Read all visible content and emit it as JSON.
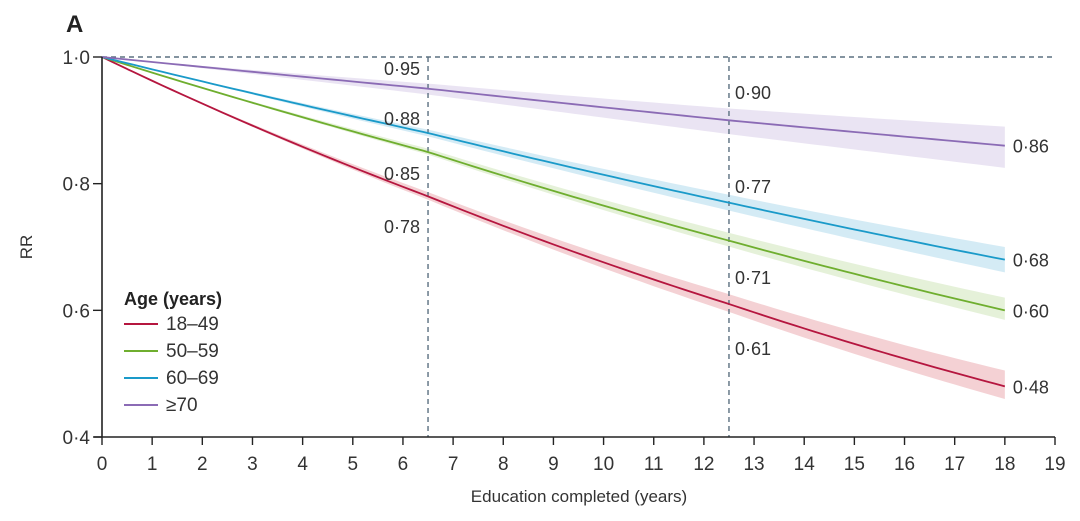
{
  "chart_data": {
    "type": "line",
    "panel_label": "A",
    "title": "",
    "xlabel": "Education completed (years)",
    "ylabel": "RR",
    "xlim": [
      0,
      19
    ],
    "ylim": [
      0.4,
      1.0
    ],
    "xticks": [
      0,
      1,
      2,
      3,
      4,
      5,
      6,
      7,
      8,
      9,
      10,
      11,
      12,
      13,
      14,
      15,
      16,
      17,
      18,
      19
    ],
    "yticks": [
      {
        "value": 0.4,
        "label": "0·4"
      },
      {
        "value": 0.6,
        "label": "0·6"
      },
      {
        "value": 0.8,
        "label": "0·8"
      },
      {
        "value": 1.0,
        "label": "1·0"
      }
    ],
    "reference_lines": {
      "horizontal": {
        "y": 1.0,
        "style": "dashed"
      },
      "vertical": [
        {
          "x": 6.5,
          "style": "dashed"
        },
        {
          "x": 12.5,
          "style": "dashed"
        }
      ]
    },
    "legend": {
      "title": "Age (years)",
      "position": "bottom-left"
    },
    "series": [
      {
        "name": "18–49",
        "color": "#b5163f",
        "band_color": "#f2c9cc",
        "x_range": [
          0,
          18
        ],
        "end_value": 0.48,
        "ci_end": [
          0.46,
          0.505
        ],
        "points": [
          {
            "x": 0,
            "y": 1.0
          },
          {
            "x": 6.5,
            "y": 0.78
          },
          {
            "x": 12.5,
            "y": 0.61
          },
          {
            "x": 18,
            "y": 0.48
          }
        ]
      },
      {
        "name": "50–59",
        "color": "#6fae2f",
        "band_color": "#e1eed2",
        "x_range": [
          0,
          18
        ],
        "end_value": 0.6,
        "ci_end": [
          0.585,
          0.62
        ],
        "points": [
          {
            "x": 0,
            "y": 1.0
          },
          {
            "x": 6.5,
            "y": 0.85
          },
          {
            "x": 12.5,
            "y": 0.71
          },
          {
            "x": 18,
            "y": 0.6
          }
        ]
      },
      {
        "name": "60–69",
        "color": "#1a9ac9",
        "band_color": "#cde8f3",
        "x_range": [
          0,
          18
        ],
        "end_value": 0.68,
        "ci_end": [
          0.66,
          0.7
        ],
        "points": [
          {
            "x": 0,
            "y": 1.0
          },
          {
            "x": 6.5,
            "y": 0.88
          },
          {
            "x": 12.5,
            "y": 0.77
          },
          {
            "x": 18,
            "y": 0.68
          }
        ]
      },
      {
        "name": "≥70",
        "color": "#8b6bb5",
        "band_color": "#e6dff1",
        "x_range": [
          0,
          18
        ],
        "end_value": 0.86,
        "ci_end": [
          0.825,
          0.89
        ],
        "points": [
          {
            "x": 0,
            "y": 1.0
          },
          {
            "x": 6.5,
            "y": 0.95
          },
          {
            "x": 12.5,
            "y": 0.9
          },
          {
            "x": 18,
            "y": 0.86
          }
        ]
      }
    ],
    "annotations": [
      {
        "text": "0·95",
        "x": 6.5,
        "y": 0.95,
        "side": "left"
      },
      {
        "text": "0·88",
        "x": 6.5,
        "y": 0.88,
        "side": "left"
      },
      {
        "text": "0·85",
        "x": 6.5,
        "y": 0.85,
        "side": "left"
      },
      {
        "text": "0·78",
        "x": 6.5,
        "y": 0.78,
        "side": "left"
      },
      {
        "text": "0·90",
        "x": 12.5,
        "y": 0.9,
        "side": "right"
      },
      {
        "text": "0·77",
        "x": 12.5,
        "y": 0.77,
        "side": "right"
      },
      {
        "text": "0·71",
        "x": 12.5,
        "y": 0.71,
        "side": "right"
      },
      {
        "text": "0·61",
        "x": 12.5,
        "y": 0.61,
        "side": "right"
      },
      {
        "text": "0·86",
        "x": 18,
        "y": 0.86,
        "side": "end"
      },
      {
        "text": "0·68",
        "x": 18,
        "y": 0.68,
        "side": "end"
      },
      {
        "text": "0·60",
        "x": 18,
        "y": 0.6,
        "side": "end"
      },
      {
        "text": "0·48",
        "x": 18,
        "y": 0.48,
        "side": "end"
      }
    ]
  }
}
